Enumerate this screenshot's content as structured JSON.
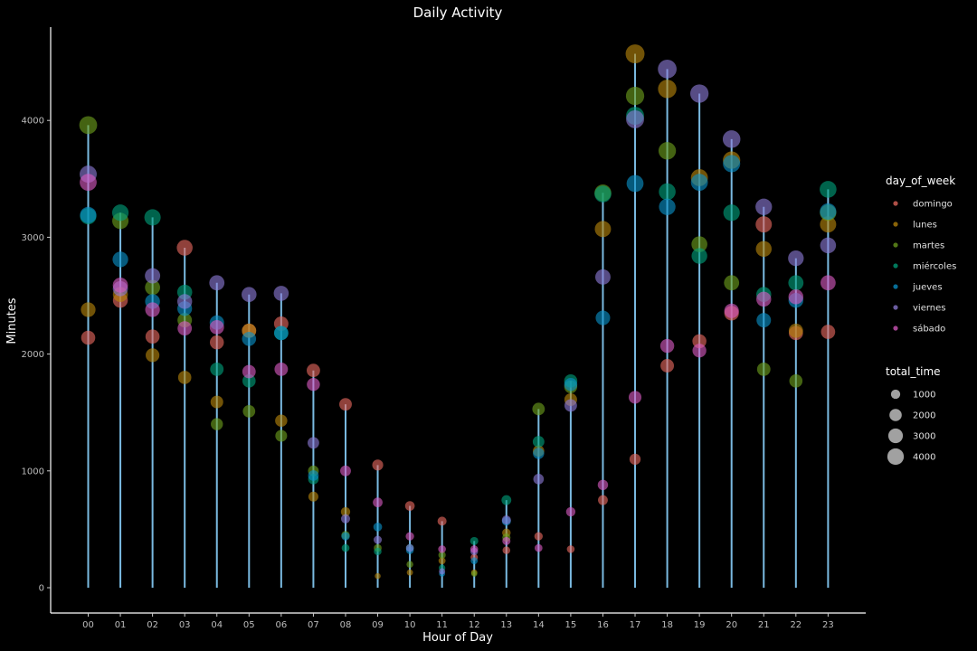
{
  "chart_data": {
    "type": "scatter",
    "title": "Daily Activity",
    "xlabel": "Hour of Day",
    "ylabel": "Minutes",
    "ylim": [
      0,
      4700
    ],
    "y_ticks": [
      0,
      1000,
      2000,
      3000,
      4000
    ],
    "categories": [
      "00",
      "01",
      "02",
      "03",
      "04",
      "05",
      "06",
      "07",
      "08",
      "09",
      "10",
      "11",
      "12",
      "13",
      "14",
      "15",
      "16",
      "17",
      "18",
      "19",
      "20",
      "21",
      "22",
      "23"
    ],
    "grid": false,
    "stem_color": "#87cefa",
    "legend_position": "right",
    "legend_title_color": "day_of_week",
    "legend_title_size": "total_time",
    "size_legend": [
      1000,
      2000,
      3000,
      4000
    ],
    "series": [
      {
        "name": "domingo",
        "color": "#e8695f",
        "values": [
          2140,
          2460,
          2150,
          2910,
          2100,
          2200,
          2260,
          1860,
          1570,
          1050,
          700,
          570,
          260,
          320,
          440,
          330,
          750,
          1100,
          1900,
          2110,
          2350,
          3110,
          2180,
          2190
        ]
      },
      {
        "name": "lunes",
        "color": "#b8860b",
        "values": [
          2380,
          2510,
          1990,
          1800,
          1590,
          2200,
          1430,
          780,
          650,
          100,
          130,
          230,
          130,
          470,
          1170,
          1610,
          3070,
          4570,
          4270,
          3510,
          3660,
          2900,
          2200,
          3110
        ]
      },
      {
        "name": "martes",
        "color": "#6e9f1d",
        "values": [
          3960,
          3140,
          2570,
          2290,
          1400,
          1510,
          1300,
          1000,
          450,
          340,
          200,
          280,
          120,
          430,
          1530,
          1720,
          3380,
          4210,
          3740,
          2940,
          2610,
          1870,
          1770,
          3210
        ]
      },
      {
        "name": "miércoles",
        "color": "#00a07a",
        "values": [
          3180,
          3210,
          3170,
          2530,
          1870,
          1770,
          2180,
          930,
          340,
          310,
          340,
          170,
          400,
          750,
          1250,
          1770,
          3370,
          4040,
          3390,
          2840,
          3210,
          2510,
          2610,
          3410
        ]
      },
      {
        "name": "jueves",
        "color": "#0a92c8",
        "values": [
          3190,
          2810,
          2450,
          2390,
          2270,
          2130,
          2180,
          960,
          440,
          520,
          320,
          120,
          230,
          570,
          1150,
          1740,
          2310,
          3460,
          3260,
          3470,
          3630,
          2290,
          2460,
          3220
        ]
      },
      {
        "name": "viernes",
        "color": "#8d7bd6",
        "values": [
          3540,
          2560,
          2670,
          2450,
          2610,
          2510,
          2520,
          1240,
          590,
          410,
          340,
          140,
          310,
          580,
          930,
          1560,
          2660,
          4010,
          4440,
          4230,
          3840,
          3260,
          2820,
          2930
        ]
      },
      {
        "name": "sábado",
        "color": "#d95ac1",
        "values": [
          3470,
          2590,
          2380,
          2220,
          2230,
          1850,
          1870,
          1740,
          1000,
          730,
          440,
          330,
          330,
          400,
          340,
          650,
          880,
          1630,
          2070,
          2030,
          2370,
          2470,
          2490,
          2610
        ]
      }
    ]
  }
}
